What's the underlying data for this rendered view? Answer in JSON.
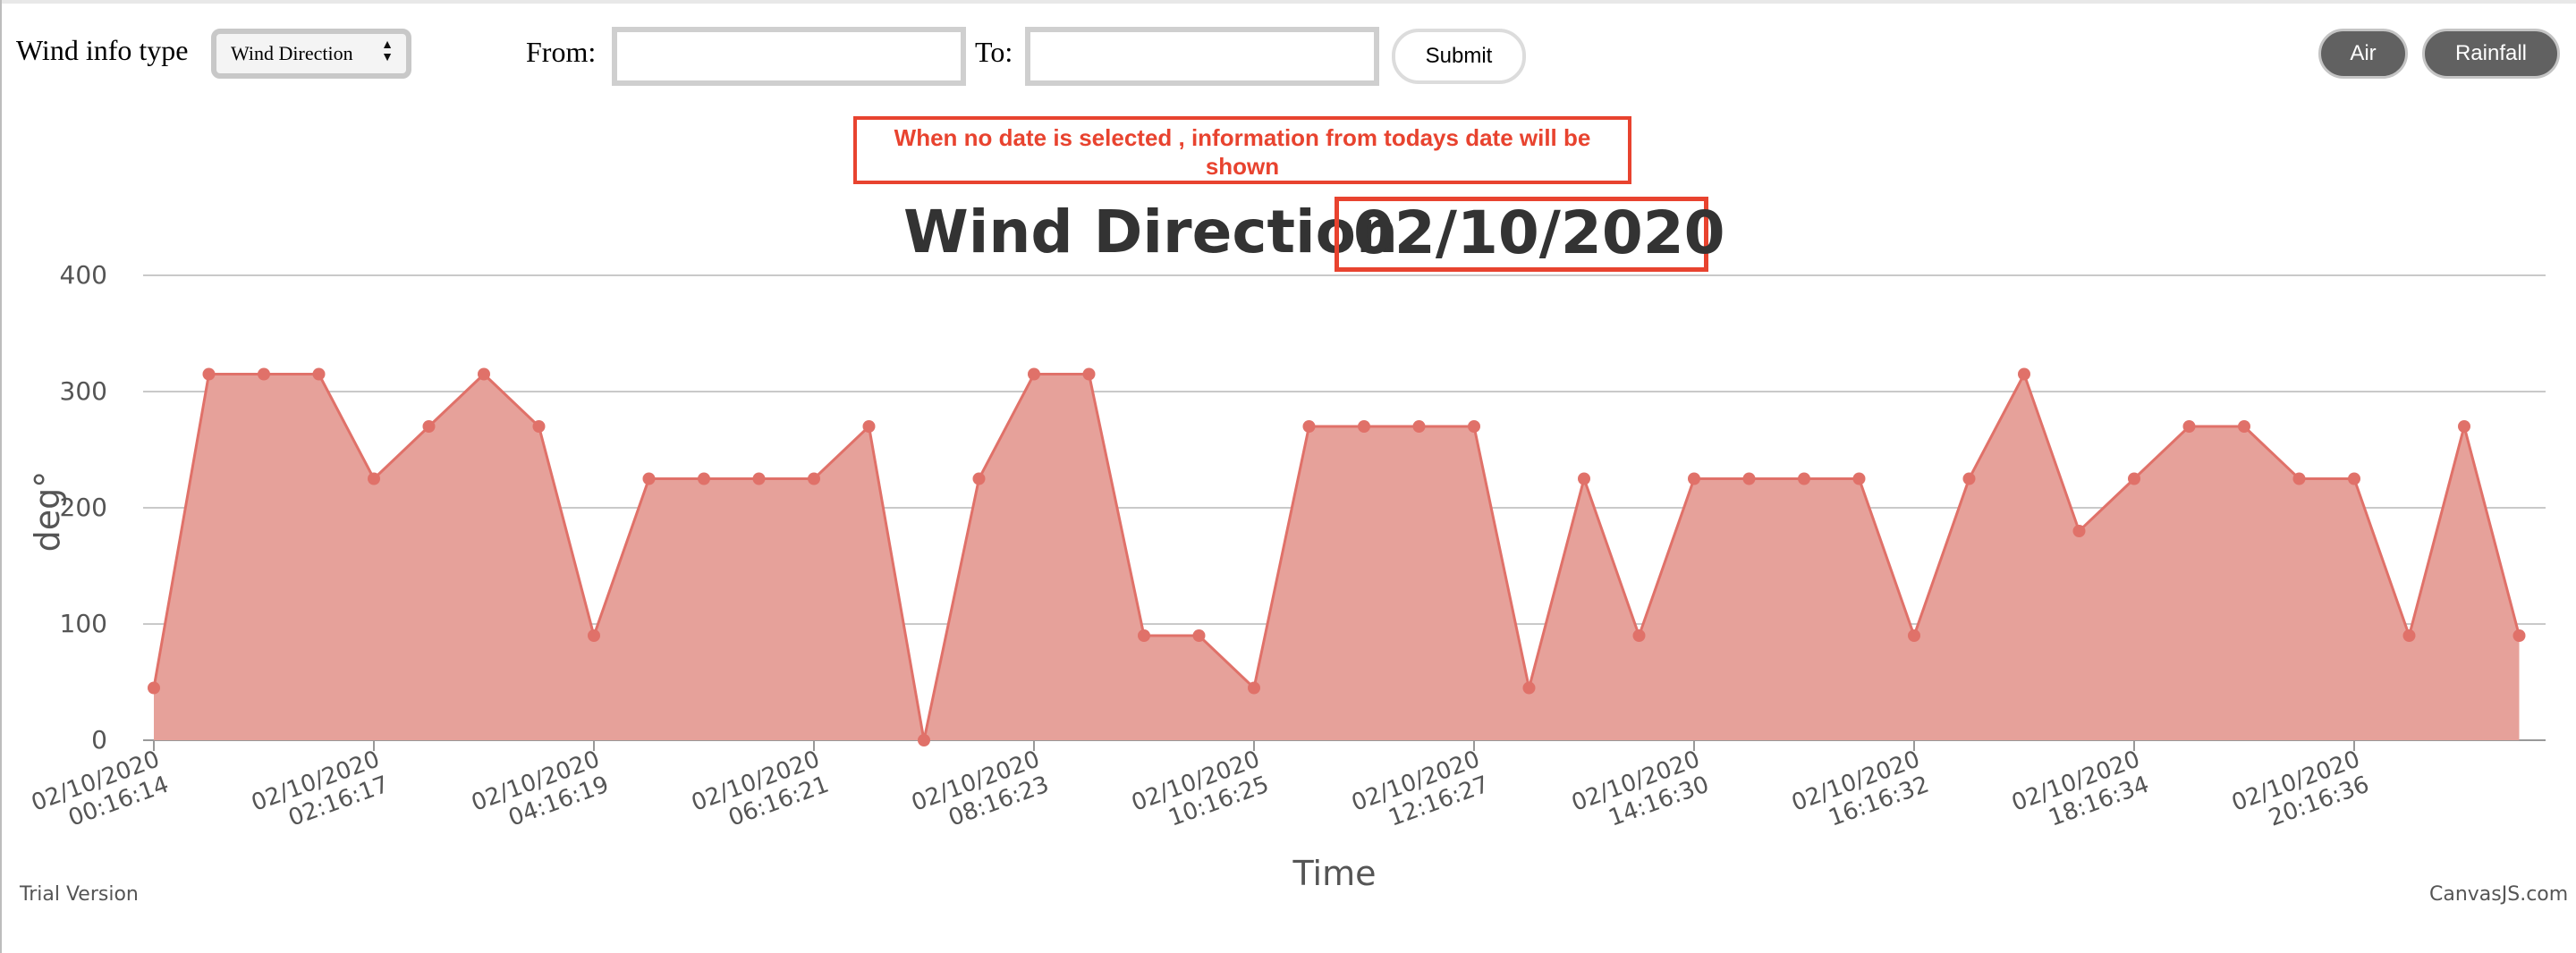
{
  "controls": {
    "wind_info_label": "Wind info type",
    "wind_info_selected": "Wind Direction",
    "from_label": "From:",
    "from_value": "",
    "to_label": "To:",
    "to_value": "",
    "submit_label": "Submit",
    "air_label": "Air",
    "rainfall_label": "Rainfall"
  },
  "notice": "When no date is selected , information from todays date will be shown",
  "footer": {
    "trial": "Trial Version",
    "brand": "CanvasJS.com"
  },
  "colors": {
    "area_fill": "#e6a19a",
    "line": "#e07169",
    "notice": "#e8432f",
    "button_dark": "#616161"
  },
  "chart_data": {
    "type": "area",
    "title": "Wind Direction",
    "title_date": "02/10/2020",
    "xlabel": "Time",
    "ylabel": "deg°",
    "ylim": [
      0,
      400
    ],
    "yticks": [
      0,
      100,
      200,
      300,
      400
    ],
    "grid": true,
    "x_tick_labels": [
      [
        "02/10/2020",
        "00:16:14"
      ],
      [
        "02/10/2020",
        "02:16:17"
      ],
      [
        "02/10/2020",
        "04:16:19"
      ],
      [
        "02/10/2020",
        "06:16:21"
      ],
      [
        "02/10/2020",
        "08:16:23"
      ],
      [
        "02/10/2020",
        "10:16:25"
      ],
      [
        "02/10/2020",
        "12:16:27"
      ],
      [
        "02/10/2020",
        "14:16:30"
      ],
      [
        "02/10/2020",
        "16:16:32"
      ],
      [
        "02/10/2020",
        "18:16:34"
      ],
      [
        "02/10/2020",
        "20:16:36"
      ]
    ],
    "points_per_tick": 4,
    "values": [
      45,
      315,
      315,
      315,
      225,
      270,
      315,
      270,
      90,
      225,
      225,
      225,
      225,
      270,
      0,
      225,
      315,
      315,
      90,
      90,
      45,
      270,
      270,
      270,
      270,
      45,
      225,
      90,
      225,
      225,
      225,
      225,
      90,
      225,
      315,
      180,
      225,
      270,
      270,
      225,
      225,
      90,
      270,
      90
    ]
  }
}
